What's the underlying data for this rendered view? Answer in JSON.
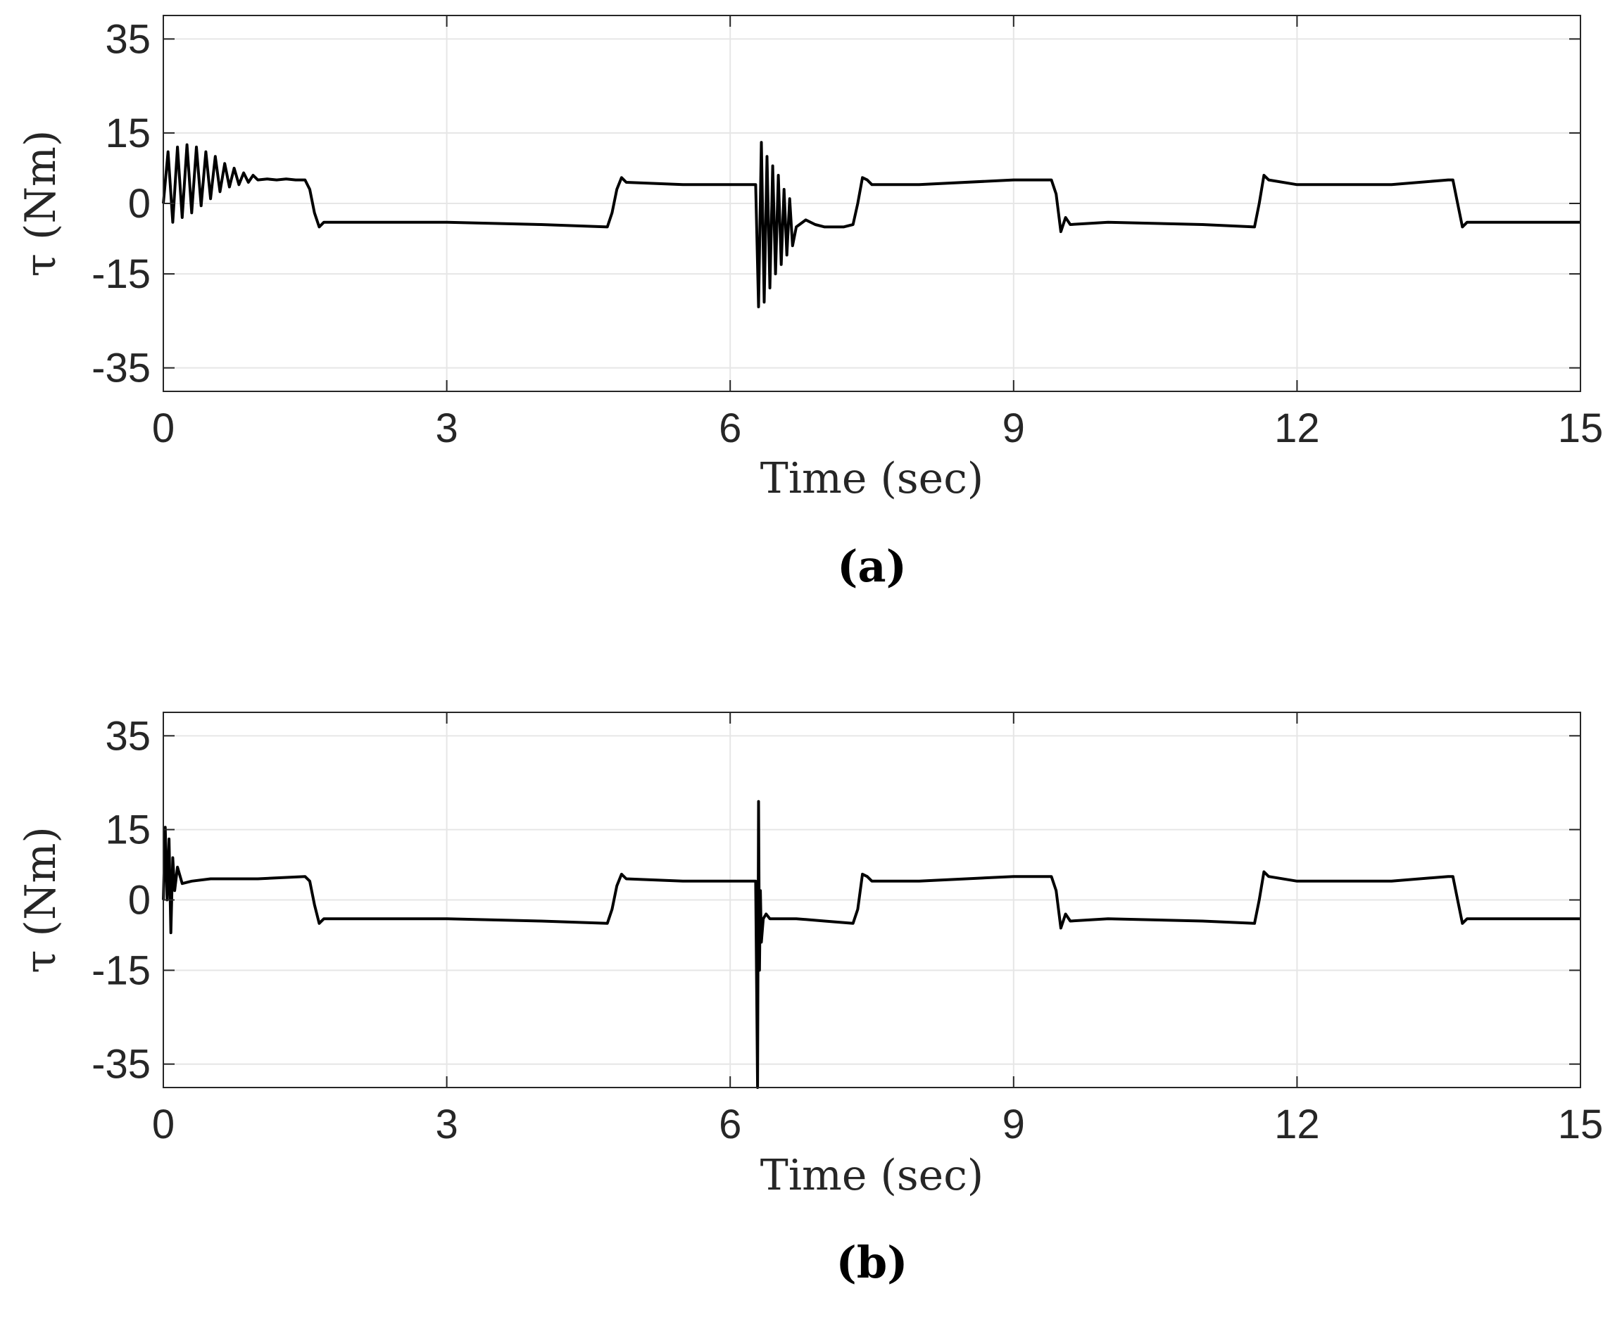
{
  "chart_data": [
    {
      "type": "line",
      "caption": "(a)",
      "xlabel": "Time (sec)",
      "ylabel": "τ (Nm)",
      "xlim": [
        0,
        15
      ],
      "ylim": [
        -40,
        40
      ],
      "xticks": [
        0,
        3,
        6,
        9,
        12,
        15
      ],
      "xtick_labels": [
        "0",
        "3",
        "6",
        "9",
        "12",
        "15"
      ],
      "yticks": [
        35,
        15,
        0,
        -15,
        -35
      ],
      "ytick_labels": [
        "35",
        "15",
        "0",
        "-15",
        "-35"
      ],
      "grid": true,
      "line_color": "#000000",
      "series": [
        {
          "name": "tau",
          "x": [
            0,
            0.05,
            0.1,
            0.15,
            0.2,
            0.25,
            0.3,
            0.35,
            0.4,
            0.45,
            0.5,
            0.55,
            0.6,
            0.65,
            0.7,
            0.75,
            0.8,
            0.85,
            0.9,
            0.95,
            1.0,
            1.1,
            1.2,
            1.3,
            1.4,
            1.5,
            1.55,
            1.6,
            1.65,
            1.7,
            2.0,
            3.0,
            4.0,
            4.7,
            4.75,
            4.8,
            4.85,
            4.9,
            5.5,
            6.2,
            6.27,
            6.3,
            6.33,
            6.36,
            6.39,
            6.42,
            6.45,
            6.48,
            6.51,
            6.54,
            6.57,
            6.6,
            6.63,
            6.66,
            6.7,
            6.8,
            6.9,
            7.0,
            7.2,
            7.3,
            7.35,
            7.4,
            7.45,
            7.5,
            8.0,
            9.0,
            9.4,
            9.45,
            9.5,
            9.55,
            9.6,
            10.0,
            11.0,
            11.55,
            11.6,
            11.65,
            11.7,
            12.0,
            13.0,
            13.6,
            13.65,
            13.7,
            13.75,
            13.8,
            14.0,
            15.0
          ],
          "y": [
            0,
            11,
            -4,
            12,
            -3,
            12.5,
            -2,
            12,
            -0.5,
            11,
            1,
            10,
            2.5,
            8.5,
            3.5,
            7.5,
            4,
            6.5,
            4.5,
            6,
            5,
            5.2,
            5,
            5.2,
            5,
            5,
            3,
            -2,
            -5,
            -4,
            -4,
            -4,
            -4.5,
            -5,
            -2,
            3,
            5.5,
            4.5,
            4,
            4,
            4,
            -22,
            13,
            -21,
            10,
            -18,
            8,
            -15,
            6,
            -13,
            3,
            -11,
            1,
            -9,
            -5,
            -3.5,
            -4.5,
            -5,
            -5,
            -4.5,
            0,
            5.5,
            5,
            4,
            4,
            5,
            5,
            2,
            -6,
            -3,
            -4.5,
            -4,
            -4.5,
            -5,
            0,
            6,
            5,
            4,
            4,
            5,
            5,
            0,
            -5,
            -4,
            -4,
            -4
          ]
        }
      ]
    },
    {
      "type": "line",
      "caption": "(b)",
      "xlabel": "Time (sec)",
      "ylabel": "τ (Nm)",
      "xlim": [
        0,
        15
      ],
      "ylim": [
        -40,
        40
      ],
      "xticks": [
        0,
        3,
        6,
        9,
        12,
        15
      ],
      "xtick_labels": [
        "0",
        "3",
        "6",
        "9",
        "12",
        "15"
      ],
      "yticks": [
        35,
        15,
        0,
        -15,
        -35
      ],
      "ytick_labels": [
        "35",
        "15",
        "0",
        "-15",
        "-35"
      ],
      "grid": true,
      "line_color": "#000000",
      "series": [
        {
          "name": "tau",
          "x": [
            0,
            0.02,
            0.04,
            0.06,
            0.08,
            0.1,
            0.12,
            0.15,
            0.2,
            0.3,
            0.5,
            1.0,
            1.5,
            1.55,
            1.6,
            1.65,
            1.7,
            2.0,
            3.0,
            4.0,
            4.7,
            4.75,
            4.8,
            4.85,
            4.9,
            5.5,
            6.2,
            6.27,
            6.29,
            6.3,
            6.31,
            6.32,
            6.33,
            6.35,
            6.38,
            6.42,
            6.5,
            6.7,
            7.0,
            7.3,
            7.35,
            7.4,
            7.45,
            7.5,
            8.0,
            9.0,
            9.4,
            9.45,
            9.5,
            9.55,
            9.6,
            10.0,
            11.0,
            11.55,
            11.6,
            11.65,
            11.7,
            12.0,
            13.0,
            13.6,
            13.65,
            13.7,
            13.75,
            13.8,
            14.0,
            15.0
          ],
          "y": [
            0,
            15.5,
            0,
            13,
            -7,
            9,
            2,
            7,
            3.5,
            4,
            4.5,
            4.5,
            5,
            4,
            -1,
            -5,
            -4,
            -4,
            -4,
            -4.5,
            -5,
            -2,
            3,
            5.5,
            4.5,
            4,
            4,
            4,
            -40,
            21,
            -15,
            2,
            -9,
            -4,
            -3,
            -4,
            -4,
            -4,
            -4.5,
            -5,
            -2,
            5.5,
            5,
            4,
            4,
            5,
            5,
            2,
            -6,
            -3,
            -4.5,
            -4,
            -4.5,
            -5,
            0,
            6,
            5,
            4,
            4,
            5,
            5,
            0,
            -5,
            -4,
            -4,
            -4
          ]
        }
      ]
    }
  ]
}
